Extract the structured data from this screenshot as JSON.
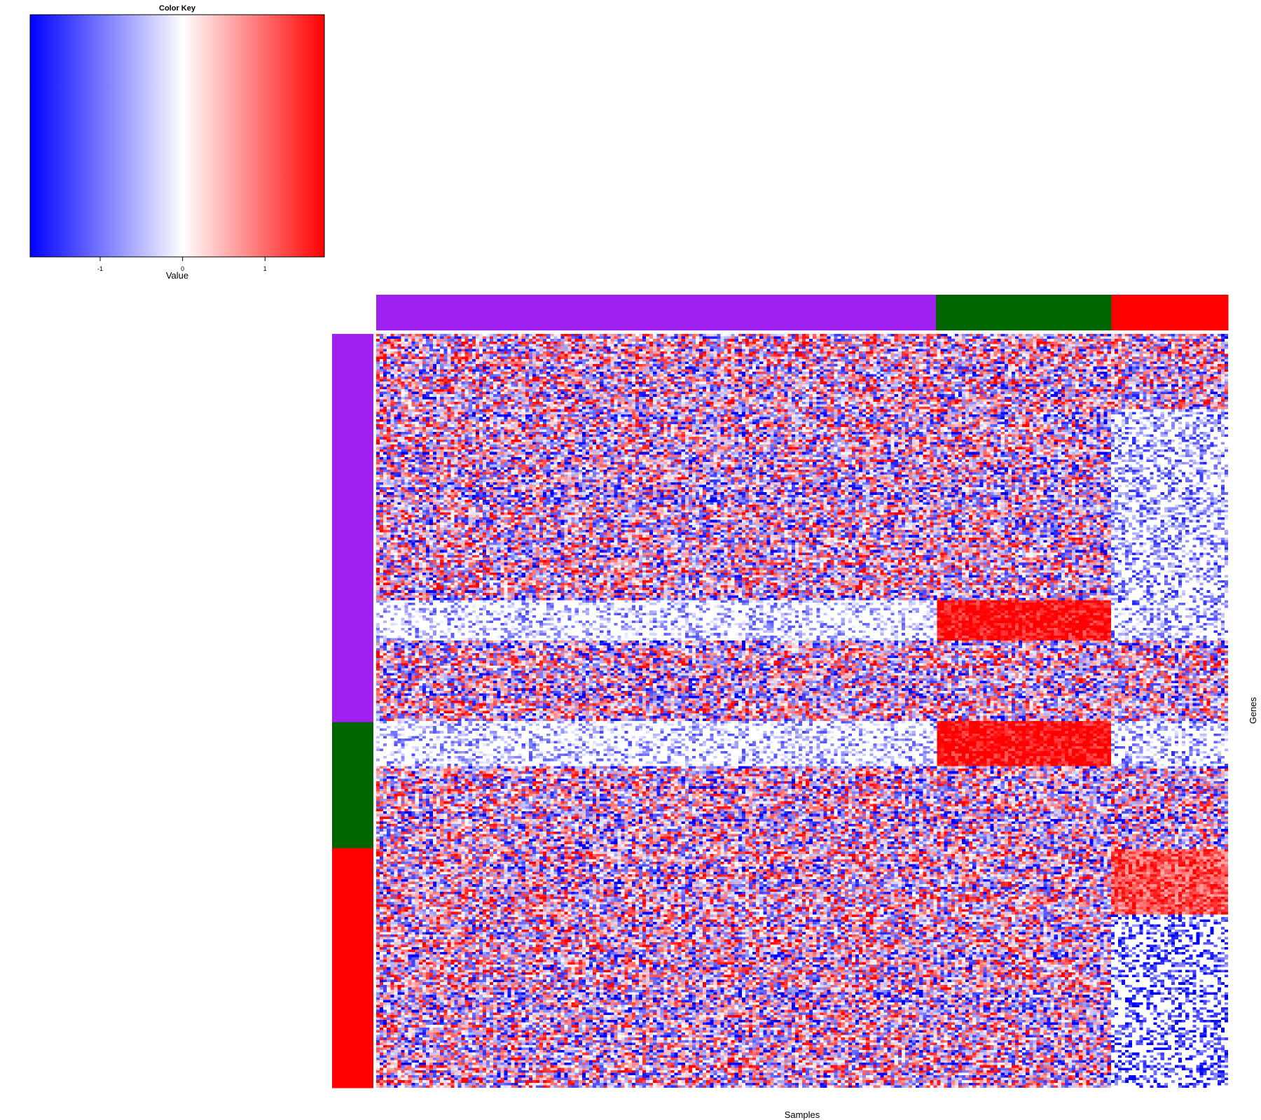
{
  "chart_data": {
    "type": "heatmap",
    "title": "",
    "xlabel": "Samples",
    "ylabel": "Genes",
    "color_key": {
      "title": "Color Key",
      "xlabel": "Value",
      "range": [
        -1.85,
        1.72
      ],
      "ticks": [
        -1,
        0,
        1
      ],
      "tick_labels": [
        "-1",
        "0",
        "1"
      ],
      "colors": [
        "#0000ff",
        "#ffffff",
        "#ff0000"
      ]
    },
    "column_groups": [
      {
        "color": "#a020f0",
        "fraction": 0.657
      },
      {
        "color": "#006400",
        "fraction": 0.206
      },
      {
        "color": "#ff0000",
        "fraction": 0.137
      }
    ],
    "row_groups": [
      {
        "color": "#a020f0",
        "fraction": 0.515
      },
      {
        "color": "#006400",
        "fraction": 0.167
      },
      {
        "color": "#ff0000",
        "fraction": 0.318
      }
    ],
    "n_rows": 300,
    "n_cols": 240,
    "pattern_blocks": [
      {
        "rows": [
          0.354,
          0.408
        ],
        "cols": [
          0.0,
          0.657
        ],
        "mean": -0.55
      },
      {
        "rows": [
          0.354,
          0.408
        ],
        "cols": [
          0.657,
          0.863
        ],
        "mean": 1.6
      },
      {
        "rows": [
          0.354,
          0.408
        ],
        "cols": [
          0.863,
          1.0
        ],
        "mean": -0.7
      },
      {
        "rows": [
          0.515,
          0.572
        ],
        "cols": [
          0.0,
          0.657
        ],
        "mean": -0.55
      },
      {
        "rows": [
          0.515,
          0.572
        ],
        "cols": [
          0.657,
          0.863
        ],
        "mean": 1.6
      },
      {
        "rows": [
          0.515,
          0.572
        ],
        "cols": [
          0.863,
          1.0
        ],
        "mean": -0.7
      },
      {
        "rows": [
          0.682,
          0.77
        ],
        "cols": [
          0.863,
          1.0
        ],
        "mean": 1.1
      },
      {
        "rows": [
          0.77,
          1.0
        ],
        "cols": [
          0.863,
          1.0
        ],
        "mean": -1.2
      },
      {
        "rows": [
          0.1,
          0.36
        ],
        "cols": [
          0.863,
          1.0
        ],
        "mean": -0.8
      }
    ],
    "legend": "top-left"
  }
}
